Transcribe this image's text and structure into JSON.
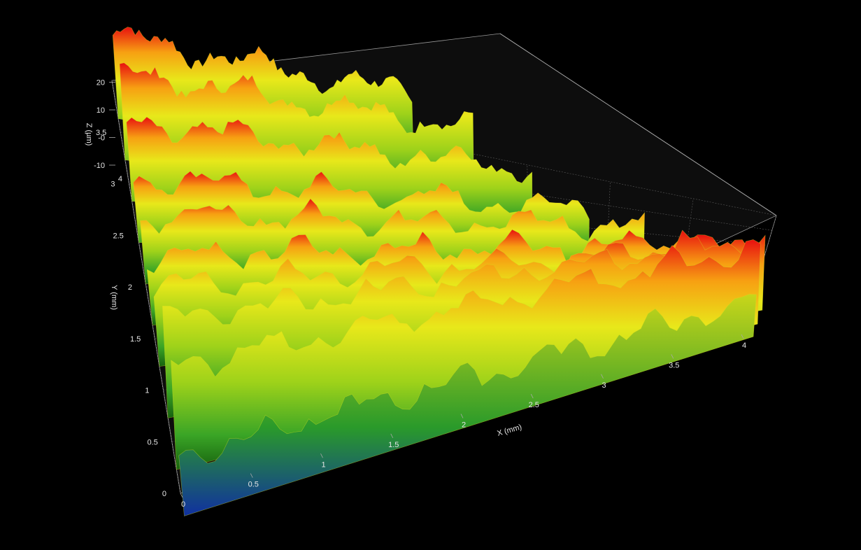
{
  "chart_data": {
    "type": "surface3d",
    "title": "",
    "x_axis": {
      "label": "X (mm)",
      "range": [
        0,
        4
      ],
      "ticks": [
        "0",
        "0.5",
        "1",
        "1.5",
        "2",
        "2.5",
        "3",
        "3.5",
        "4"
      ],
      "tick_values": [
        0,
        0.5,
        1,
        1.5,
        2,
        2.5,
        3,
        3.5,
        4
      ]
    },
    "y_axis": {
      "label": "Y (mm)",
      "range": [
        0,
        4
      ],
      "ticks": [
        "0",
        "0.5",
        "1",
        "1.5",
        "2",
        "2.5",
        "3",
        "3.5",
        "4"
      ],
      "tick_values": [
        0,
        0.5,
        1,
        1.5,
        2,
        2.5,
        3,
        3.5,
        4
      ]
    },
    "z_axis": {
      "label": "Z (µm)",
      "range": [
        -10,
        20
      ],
      "ticks": [
        "-10",
        "-0",
        "10",
        "20"
      ],
      "tick_values": [
        -10,
        0,
        10,
        20
      ]
    },
    "colormap": [
      "#1030a0",
      "#1a8a2a",
      "#6cc21a",
      "#e8e81a",
      "#f7a012",
      "#e81010"
    ],
    "ridges": [
      {
        "y": 3.95,
        "peak_z": 11
      },
      {
        "y": 3.55,
        "peak_z": 12
      },
      {
        "y": 3.15,
        "peak_z": 10
      },
      {
        "y": 2.75,
        "peak_z": 7
      },
      {
        "y": 2.35,
        "peak_z": 8
      },
      {
        "y": 1.95,
        "peak_z": 8
      },
      {
        "y": 1.55,
        "peak_z": 10
      },
      {
        "y": 1.05,
        "peak_z": 14
      },
      {
        "y": 0.55,
        "peak_z": 15
      },
      {
        "y": 0.1,
        "peak_z": 6
      }
    ],
    "grid": true,
    "background": "#000000"
  }
}
